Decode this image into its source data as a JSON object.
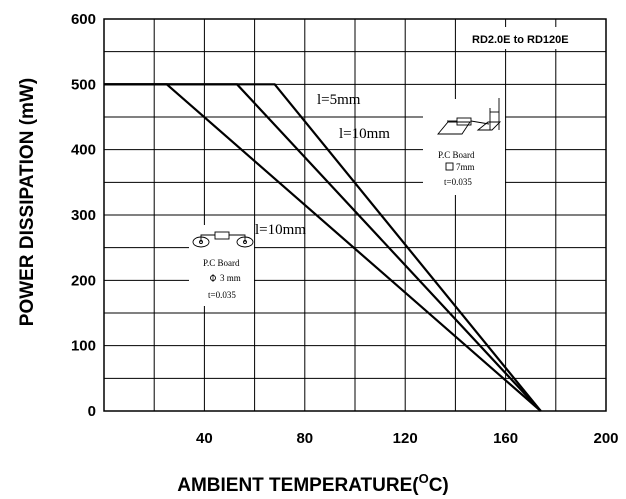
{
  "chart_data": {
    "type": "line",
    "xlabel": "AMBIENT TEMPERATURE(",
    "xlabel_unit_sup": "O",
    "xlabel_unit": "C)",
    "ylabel": "POWER DISSIPATION  (mW)",
    "xlim": [
      0,
      200
    ],
    "ylim": [
      0,
      600
    ],
    "x_ticks": [
      "40",
      "80",
      "120",
      "160",
      "200"
    ],
    "y_ticks": [
      "0",
      "100",
      "200",
      "300",
      "400",
      "500",
      "600"
    ],
    "grid": true,
    "annotation_top_right": "RD2.0E to RD120E",
    "series": [
      {
        "name": "l=5mm",
        "x": [
          0,
          68,
          174
        ],
        "y": [
          500,
          500,
          0
        ]
      },
      {
        "name": "l=10mm",
        "x": [
          0,
          53,
          174
        ],
        "y": [
          500,
          500,
          0
        ]
      },
      {
        "name": "l=10mm",
        "x": [
          0,
          25,
          174
        ],
        "y": [
          500,
          500,
          0
        ]
      }
    ],
    "inset_right": {
      "board": "P.C Board",
      "size": "7mm",
      "thickness": "t=0.035"
    },
    "inset_left": {
      "board": "P.C Board",
      "size": "3 mm",
      "thickness": "t=0.035"
    }
  }
}
